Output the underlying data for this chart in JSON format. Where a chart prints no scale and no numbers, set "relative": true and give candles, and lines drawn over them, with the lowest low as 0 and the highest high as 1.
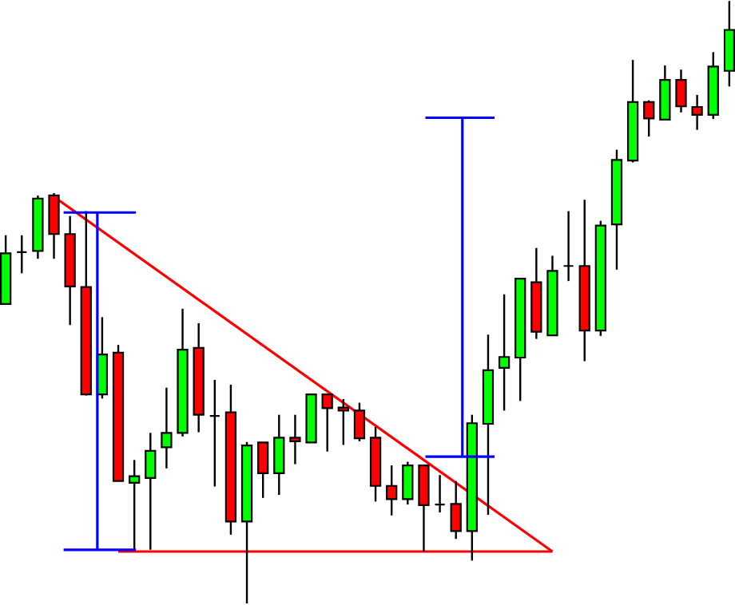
{
  "chart_data": {
    "type": "candlestick",
    "relative": true,
    "categories": [
      null,
      null,
      null,
      null,
      null,
      null,
      null,
      null,
      null,
      null,
      null,
      null,
      null,
      null,
      null,
      null,
      null,
      null,
      null,
      null,
      null,
      null,
      null,
      null,
      null,
      null,
      null,
      null,
      null,
      null,
      null,
      null,
      null,
      null,
      null,
      null,
      null,
      null,
      null,
      null,
      null,
      null,
      null,
      null,
      null,
      null
    ],
    "ohlc": [
      [
        0.497,
        0.611,
        0.497,
        0.581
      ],
      [
        0.583,
        0.611,
        0.548,
        0.583
      ],
      [
        0.585,
        0.677,
        0.572,
        0.672
      ],
      [
        0.677,
        0.681,
        0.572,
        0.613
      ],
      [
        0.613,
        0.643,
        0.462,
        0.526
      ],
      [
        0.525,
        0.651,
        0.345,
        0.347
      ],
      [
        0.347,
        0.475,
        0.34,
        0.413
      ],
      [
        0.416,
        0.429,
        0.203,
        0.203
      ],
      [
        0.2,
        0.238,
        0.089,
        0.211
      ],
      [
        0.208,
        0.283,
        0.089,
        0.253
      ],
      [
        0.259,
        0.358,
        0.224,
        0.283
      ],
      [
        0.283,
        0.489,
        0.277,
        0.421
      ],
      [
        0.424,
        0.465,
        0.284,
        0.313
      ],
      [
        0.311,
        0.371,
        0.194,
        0.311
      ],
      [
        0.317,
        0.363,
        0.114,
        0.136
      ],
      [
        0.136,
        0.268,
        0.0,
        0.262
      ],
      [
        0.267,
        0.267,
        0.175,
        0.216
      ],
      [
        0.216,
        0.313,
        0.18,
        0.275
      ],
      [
        0.275,
        0.313,
        0.231,
        0.269
      ],
      [
        0.267,
        0.347,
        0.267,
        0.347
      ],
      [
        0.347,
        0.347,
        0.252,
        0.324
      ],
      [
        0.325,
        0.339,
        0.263,
        0.32
      ],
      [
        0.32,
        0.333,
        0.269,
        0.274
      ],
      [
        0.275,
        0.293,
        0.169,
        0.195
      ],
      [
        0.195,
        0.229,
        0.146,
        0.173
      ],
      [
        0.173,
        0.235,
        0.164,
        0.229
      ],
      [
        0.229,
        0.229,
        0.086,
        0.163
      ],
      [
        0.164,
        0.213,
        0.151,
        0.164
      ],
      [
        0.165,
        0.203,
        0.107,
        0.12
      ],
      [
        0.12,
        0.313,
        0.071,
        0.299
      ],
      [
        0.298,
        0.446,
        0.147,
        0.387
      ],
      [
        0.391,
        0.513,
        0.32,
        0.409
      ],
      [
        0.408,
        0.539,
        0.336,
        0.539
      ],
      [
        0.533,
        0.59,
        0.439,
        0.451
      ],
      [
        0.445,
        0.577,
        0.445,
        0.552
      ],
      [
        0.56,
        0.651,
        0.535,
        0.56
      ],
      [
        0.56,
        0.67,
        0.402,
        0.453
      ],
      [
        0.453,
        0.635,
        0.444,
        0.627
      ],
      [
        0.629,
        0.753,
        0.554,
        0.736
      ],
      [
        0.735,
        0.902,
        0.732,
        0.832
      ],
      [
        0.832,
        0.835,
        0.775,
        0.805
      ],
      [
        0.803,
        0.893,
        0.803,
        0.869
      ],
      [
        0.869,
        0.886,
        0.815,
        0.825
      ],
      [
        0.824,
        0.844,
        0.786,
        0.811
      ],
      [
        0.811,
        0.915,
        0.804,
        0.891
      ],
      [
        0.884,
        1.0,
        0.858,
        0.952
      ]
    ],
    "colors": [
      "#00ff00",
      "#000000",
      "#00ff00",
      "#ff0000",
      "#ff0000",
      "#ff0000",
      "#00ff00",
      "#ff0000",
      "#00ff00",
      "#00ff00",
      "#00ff00",
      "#00ff00",
      "#ff0000",
      "#000000",
      "#ff0000",
      "#00ff00",
      "#ff0000",
      "#00ff00",
      "#ff0000",
      "#00ff00",
      "#ff0000",
      "#ff0000",
      "#ff0000",
      "#ff0000",
      "#ff0000",
      "#00ff00",
      "#ff0000",
      "#000000",
      "#ff0000",
      "#00ff00",
      "#00ff00",
      "#00ff00",
      "#00ff00",
      "#ff0000",
      "#00ff00",
      "#000000",
      "#ff0000",
      "#00ff00",
      "#00ff00",
      "#00ff00",
      "#ff0000",
      "#00ff00",
      "#ff0000",
      "#ff0000",
      "#00ff00",
      "#00ff00"
    ],
    "series": [
      {
        "type": "line",
        "color": "#ff0000",
        "values": [
          null,
          null,
          null,
          0.675,
          null,
          null,
          null,
          null,
          null,
          null,
          null,
          null,
          null,
          null,
          null,
          null,
          null,
          null,
          null,
          null,
          null,
          null,
          null,
          null,
          null,
          null,
          null,
          null,
          null,
          null,
          null,
          null,
          null,
          null,
          0.086,
          null,
          null,
          null,
          null,
          null,
          null,
          null,
          null,
          null,
          null,
          null
        ]
      },
      {
        "type": "line",
        "color": "#ff0000",
        "values": [
          null,
          null,
          null,
          null,
          null,
          null,
          null,
          0.086,
          0.086,
          0.086,
          0.086,
          0.086,
          0.086,
          0.086,
          0.086,
          0.086,
          0.086,
          0.086,
          0.086,
          0.086,
          0.086,
          0.086,
          0.086,
          0.086,
          0.086,
          0.086,
          0.086,
          0.086,
          0.086,
          0.086,
          0.086,
          0.086,
          0.086,
          0.086,
          0.086,
          null,
          null,
          null,
          null,
          null,
          null,
          null,
          null,
          null,
          null,
          null
        ]
      }
    ]
  }
}
